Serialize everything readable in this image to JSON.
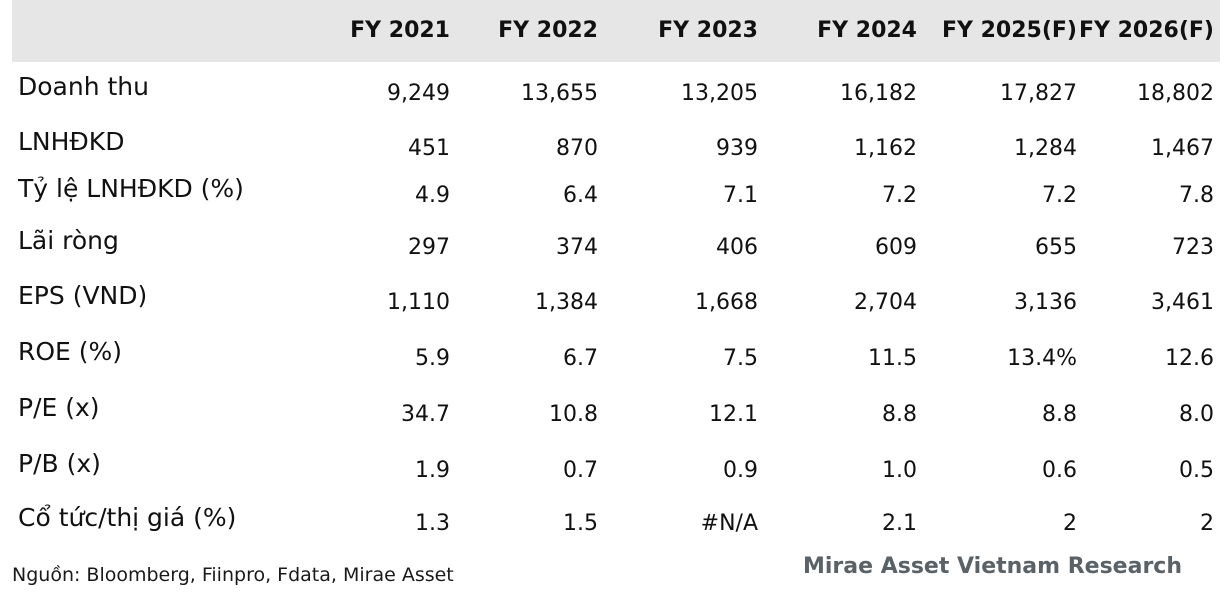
{
  "table": {
    "columns": [
      "FY 2021",
      "FY 2022",
      "FY 2023",
      "FY 2024",
      "FY 2025(F)",
      "FY 2026(F)"
    ],
    "rows": [
      {
        "label": "Doanh thu",
        "values": [
          "9,249",
          "13,655",
          "13,205",
          "16,182",
          "17,827",
          "18,802"
        ]
      },
      {
        "label": "LNHĐKD",
        "values": [
          "451",
          "870",
          "939",
          "1,162",
          "1,284",
          "1,467"
        ]
      },
      {
        "label": "Tỷ lệ LNHĐKD (%)",
        "values": [
          "4.9",
          "6.4",
          "7.1",
          "7.2",
          "7.2",
          "7.8"
        ]
      },
      {
        "label": "Lãi ròng",
        "values": [
          "297",
          "374",
          "406",
          "609",
          "655",
          "723"
        ]
      },
      {
        "label": "EPS (VND)",
        "values": [
          "1,110",
          "1,384",
          "1,668",
          "2,704",
          "3,136",
          "3,461"
        ]
      },
      {
        "label": "ROE (%)",
        "values": [
          "5.9",
          "6.7",
          "7.5",
          "11.5",
          "13.4%",
          "12.6"
        ]
      },
      {
        "label": "P/E (x)",
        "values": [
          "34.7",
          "10.8",
          "12.1",
          "8.8",
          "8.8",
          "8.0"
        ]
      },
      {
        "label": "P/B (x)",
        "values": [
          "1.9",
          "0.7",
          "0.9",
          "1.0",
          "0.6",
          "0.5"
        ]
      },
      {
        "label": "Cổ tức/thị giá (%)",
        "values": [
          "1.3",
          "1.5",
          "#N/A",
          "2.1",
          "2",
          "2"
        ]
      }
    ]
  },
  "footer": {
    "source": "Nguồn: Bloomberg, Fiinpro, Fdata, Mirae Asset",
    "brand": "Mirae Asset Vietnam Research"
  },
  "colors": {
    "header_background": "#e6e6e6",
    "brand_text": "#5a6268"
  }
}
